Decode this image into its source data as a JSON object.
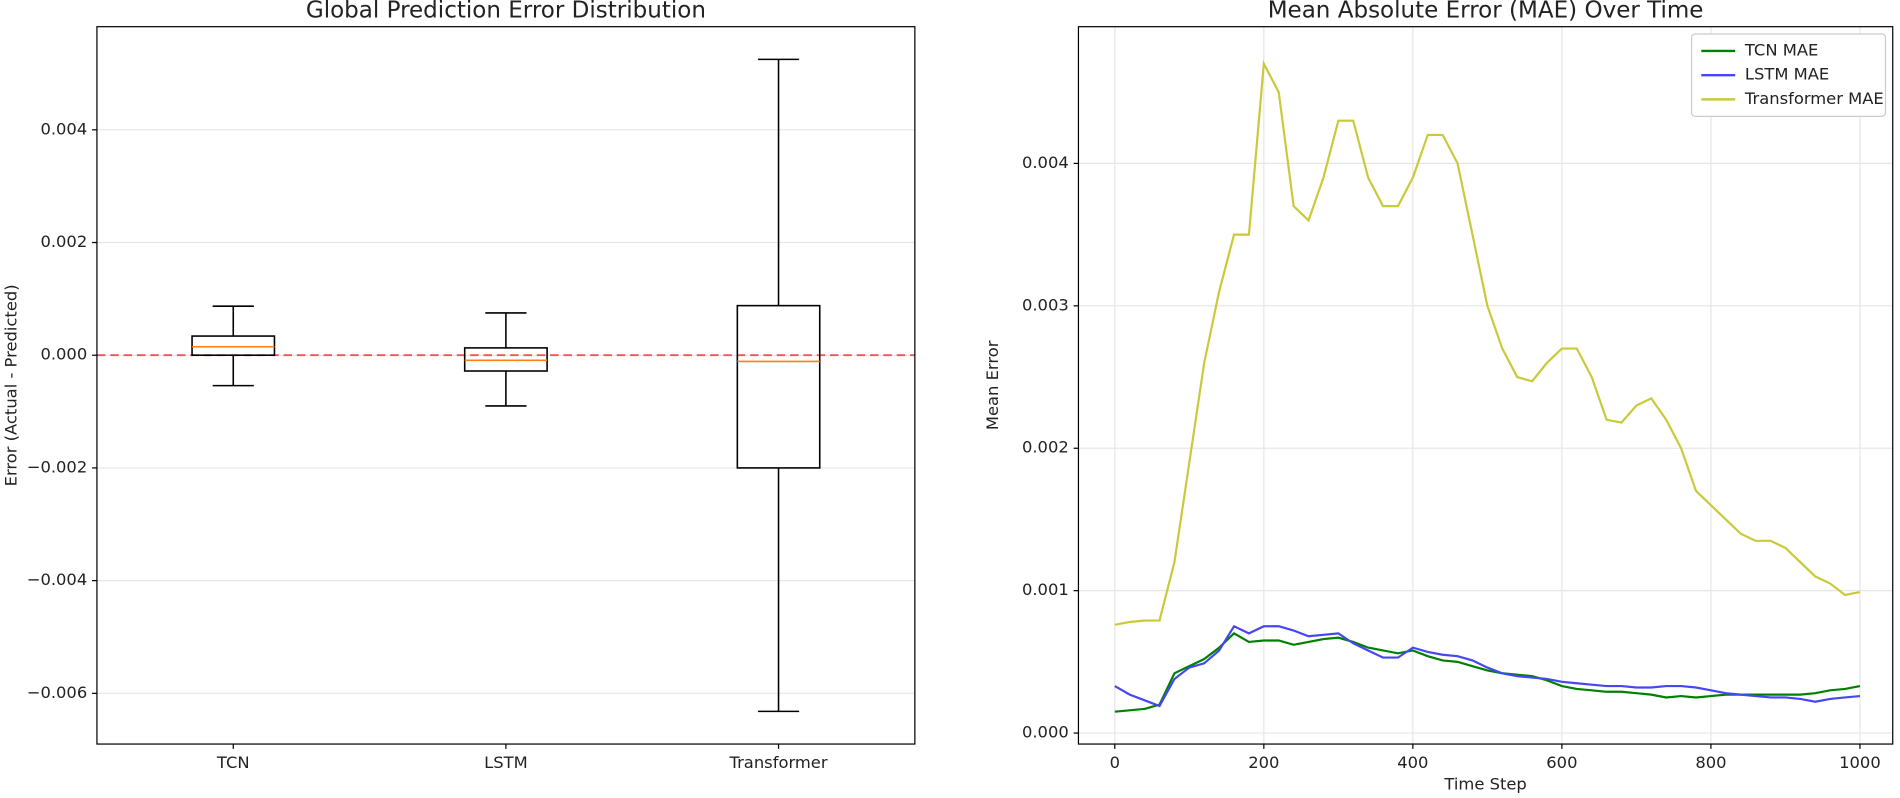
{
  "chart_data": [
    {
      "type": "box",
      "title": "Global Prediction Error Distribution",
      "y_label": "Error (Actual - Predicted)",
      "categories": [
        "TCN",
        "LSTM",
        "Transformer"
      ],
      "stats": [
        {
          "whislo": -0.00054,
          "q1": 0.0,
          "med": 0.00015,
          "q3": 0.00034,
          "whishi": 0.00087
        },
        {
          "whislo": -0.0009,
          "q1": -0.00028,
          "med": -9e-05,
          "q3": 0.00013,
          "whishi": 0.00075
        },
        {
          "whislo": -0.00632,
          "q1": -0.002,
          "med": -0.00011,
          "q3": 0.00088,
          "whishi": 0.00525
        }
      ],
      "box_color": "#000000",
      "median_color": "#ff7f0e",
      "reference_line": {
        "value": 0,
        "color": "#ee5555"
      },
      "ylim": [
        -0.0069,
        0.00583
      ],
      "yticks": [
        {
          "value": -0.006,
          "label": "−0.006"
        },
        {
          "value": -0.004,
          "label": "−0.004"
        },
        {
          "value": -0.002,
          "label": "−0.002"
        },
        {
          "value": 0,
          "label": "0.000"
        },
        0.002,
        0.004
      ],
      "grid": true
    },
    {
      "type": "line",
      "title": "Mean Absolute Error (MAE) Over Time",
      "x_label": "Time Step",
      "y_label": "Mean Error",
      "x": [
        0,
        20,
        40,
        60,
        80,
        100,
        120,
        140,
        160,
        180,
        200,
        220,
        240,
        260,
        280,
        300,
        320,
        340,
        360,
        380,
        400,
        420,
        440,
        460,
        480,
        500,
        520,
        540,
        560,
        580,
        600,
        620,
        640,
        660,
        680,
        700,
        720,
        740,
        760,
        780,
        800,
        820,
        840,
        860,
        880,
        900,
        920,
        940,
        960,
        980,
        1000
      ],
      "series": [
        {
          "name": "TCN MAE",
          "color": "#008000",
          "values": [
            0.00015,
            0.00016,
            0.00017,
            0.0002,
            0.00042,
            0.00047,
            0.00052,
            0.0006,
            0.0007,
            0.00064,
            0.00065,
            0.00065,
            0.00062,
            0.00064,
            0.00066,
            0.00067,
            0.00064,
            0.0006,
            0.00058,
            0.00056,
            0.00058,
            0.00054,
            0.00051,
            0.0005,
            0.00047,
            0.00044,
            0.00042,
            0.00041,
            0.0004,
            0.00037,
            0.00033,
            0.00031,
            0.0003,
            0.00029,
            0.00029,
            0.00028,
            0.00027,
            0.00025,
            0.00026,
            0.00025,
            0.00026,
            0.00027,
            0.00027,
            0.00027,
            0.00027,
            0.00027,
            0.00027,
            0.00028,
            0.0003,
            0.00031,
            0.00033
          ]
        },
        {
          "name": "LSTM MAE",
          "color": "#4646f5",
          "values": [
            0.00033,
            0.00027,
            0.00023,
            0.00019,
            0.00038,
            0.00046,
            0.00049,
            0.00058,
            0.00075,
            0.0007,
            0.00075,
            0.00075,
            0.00072,
            0.00068,
            0.00069,
            0.0007,
            0.00063,
            0.00058,
            0.00053,
            0.00053,
            0.0006,
            0.00057,
            0.00055,
            0.00054,
            0.00051,
            0.00046,
            0.00042,
            0.0004,
            0.00039,
            0.00038,
            0.00036,
            0.00035,
            0.00034,
            0.00033,
            0.00033,
            0.00032,
            0.00032,
            0.00033,
            0.00033,
            0.00032,
            0.0003,
            0.00028,
            0.00027,
            0.00026,
            0.00025,
            0.00025,
            0.00024,
            0.00022,
            0.00024,
            0.00025,
            0.00026
          ]
        },
        {
          "name": "Transformer MAE",
          "color": "#c9c93a",
          "values": [
            0.00076,
            0.00078,
            0.00079,
            0.00079,
            0.0012,
            0.0019,
            0.0026,
            0.0031,
            0.0035,
            0.0035,
            0.0047,
            0.0045,
            0.0037,
            0.0036,
            0.0039,
            0.0043,
            0.0043,
            0.0039,
            0.0037,
            0.0037,
            0.0039,
            0.0042,
            0.0042,
            0.004,
            0.0035,
            0.003,
            0.0027,
            0.0025,
            0.00247,
            0.0026,
            0.0027,
            0.0027,
            0.0025,
            0.0022,
            0.00218,
            0.0023,
            0.00235,
            0.0022,
            0.002,
            0.0017,
            0.0016,
            0.0015,
            0.0014,
            0.00135,
            0.00135,
            0.0013,
            0.0012,
            0.0011,
            0.00105,
            0.00097,
            0.00099
          ]
        }
      ],
      "xlim": [
        -48.8,
        1044
      ],
      "xticks": [
        0,
        200,
        400,
        600,
        800,
        1000
      ],
      "ylim": [
        -7.7e-05,
        0.00496
      ],
      "yticks": [
        {
          "value": 0,
          "label": "0.000"
        },
        0.001,
        0.002,
        0.003,
        0.004
      ],
      "grid": true,
      "legend": "upper right"
    }
  ]
}
